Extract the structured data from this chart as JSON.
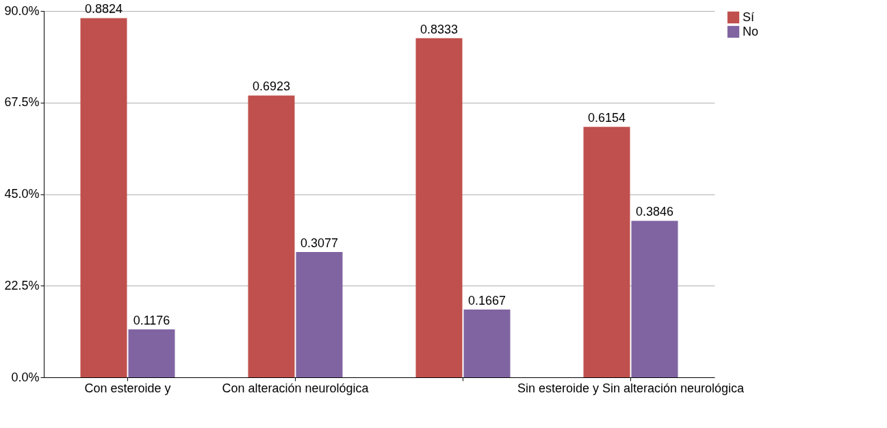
{
  "chart_data": {
    "type": "bar",
    "categories": [
      "Con esteroide y",
      "Con alteración neurológica",
      null,
      "Sin esteroide y Sin alteración neurológica"
    ],
    "series": [
      {
        "name": "Sí",
        "color": "#c0504d",
        "values": [
          0.8824,
          0.6923,
          0.8333,
          0.6154
        ]
      },
      {
        "name": "No",
        "color": "#8064a2",
        "values": [
          0.1176,
          0.3077,
          0.1667,
          0.3846
        ]
      }
    ],
    "ylim": [
      0,
      0.9
    ],
    "yticks": [
      {
        "value": 0,
        "label": "0.0%"
      },
      {
        "value": 0.225,
        "label": "22.5%"
      },
      {
        "value": 0.45,
        "label": "45.0%"
      },
      {
        "value": 0.675,
        "label": "67.5%"
      },
      {
        "value": 0.9,
        "label": "90.0%"
      }
    ],
    "grid": "y",
    "legend": "right",
    "data_labels": true
  }
}
